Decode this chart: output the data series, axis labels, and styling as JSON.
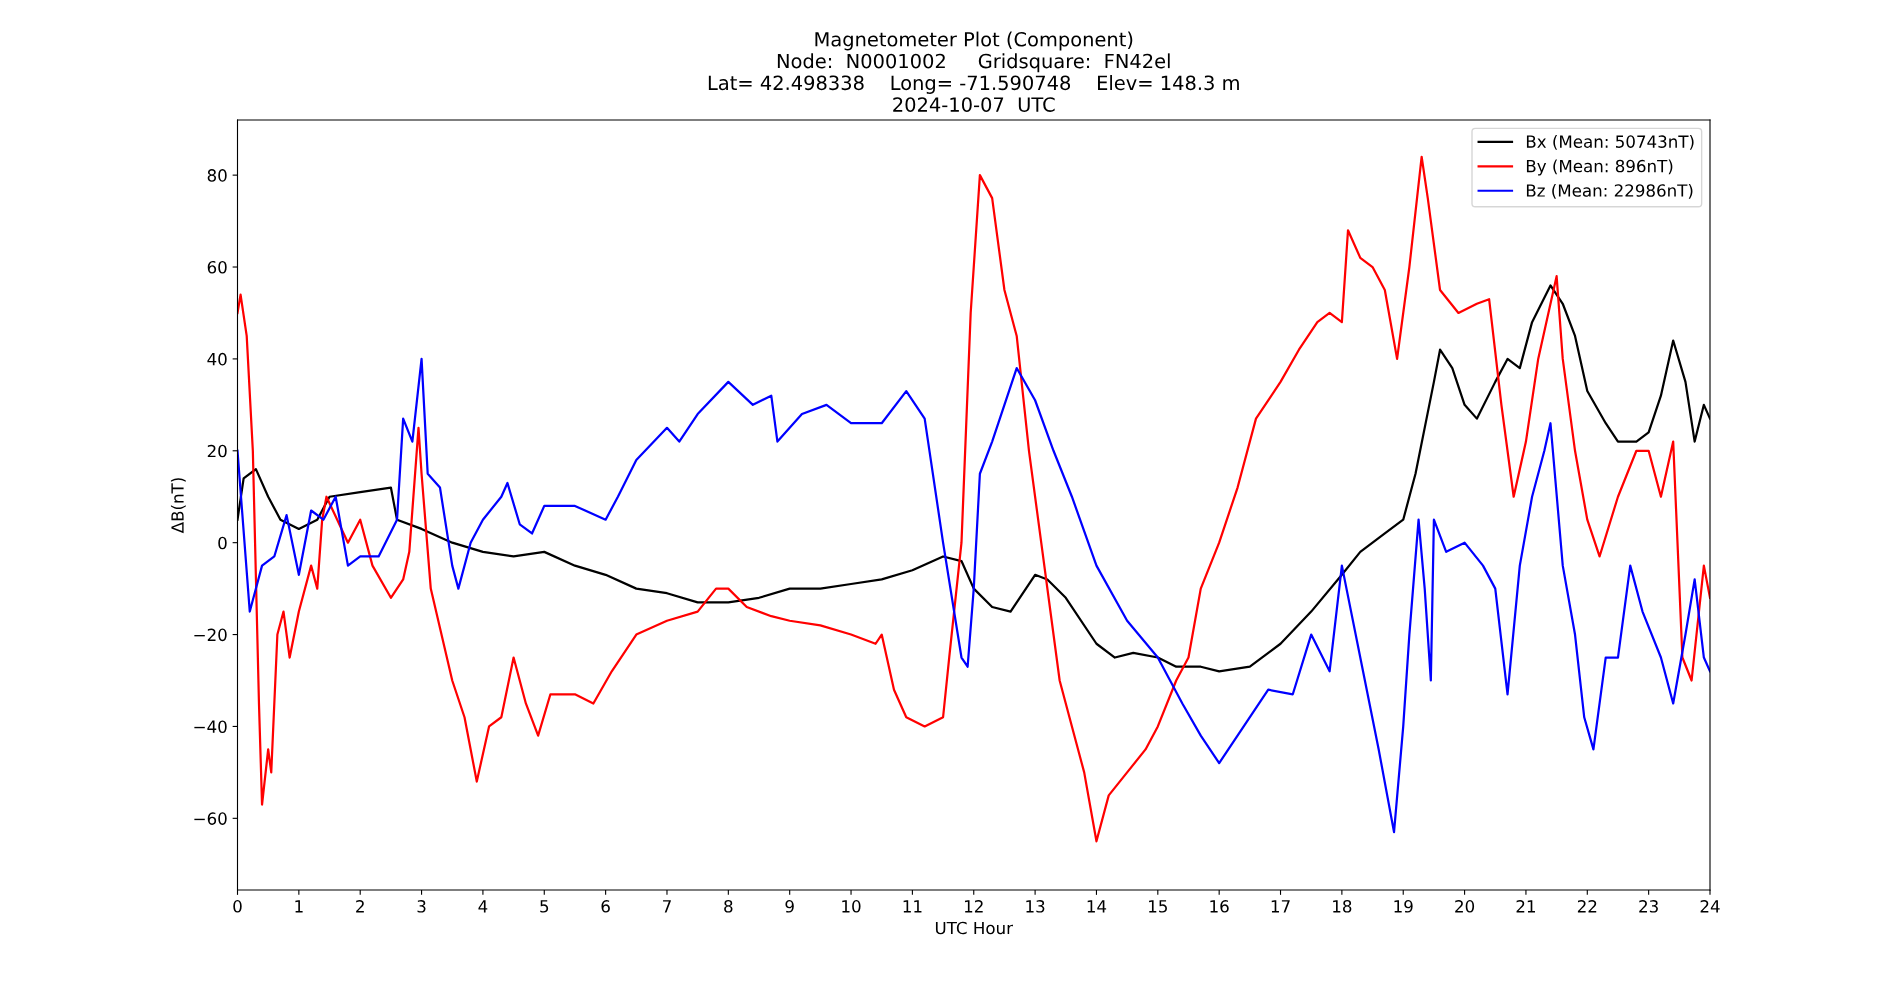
{
  "chart_data": {
    "type": "line",
    "title": "Magnetometer Plot (Component)\nNode:  N0001002     Gridsquare:  FN42el\nLat= 42.498338    Long= -71.590748    Elev= 148.3 m\n2024-10-07  UTC",
    "xlabel": "UTC Hour",
    "ylabel": "ΔB(nT)",
    "xlim": [
      0,
      24
    ],
    "xticks": [
      0,
      1,
      2,
      3,
      4,
      5,
      6,
      7,
      8,
      9,
      10,
      11,
      12,
      13,
      14,
      15,
      16,
      17,
      18,
      19,
      20,
      21,
      22,
      23,
      24
    ],
    "ylim": [
      -75.6,
      92
    ],
    "yticks": [
      {
        "value": -60,
        "label": "−60"
      },
      {
        "value": -40,
        "label": "−40"
      },
      {
        "value": -20,
        "label": "−20"
      },
      0,
      20,
      40,
      60,
      80
    ],
    "grid": false,
    "legend": "top right",
    "line_style": "solid",
    "marker": "none",
    "series": [
      {
        "name": "Bx (Mean: 50743nT)",
        "color": "#000000",
        "x": [
          0,
          0.1,
          0.3,
          0.5,
          0.7,
          1.0,
          1.3,
          1.5,
          2.0,
          2.5,
          2.6,
          3.0,
          3.5,
          4,
          4.5,
          5,
          5.5,
          6,
          6.5,
          7,
          7.5,
          8,
          8.5,
          9,
          9.5,
          10,
          10.5,
          11,
          11.5,
          11.8,
          12,
          12.3,
          12.6,
          13,
          13.2,
          13.5,
          14,
          14.3,
          14.6,
          15,
          15.3,
          15.7,
          16,
          16.5,
          17,
          17.5,
          18,
          18.3,
          18.7,
          19,
          19.2,
          19.5,
          19.6,
          19.8,
          20,
          20.2,
          20.5,
          20.7,
          20.9,
          21.1,
          21.4,
          21.6,
          21.8,
          22,
          22.3,
          22.5,
          22.8,
          23,
          23.2,
          23.4,
          23.6,
          23.75,
          23.9,
          24
        ],
        "values": [
          5,
          14,
          16,
          10,
          5,
          3,
          5,
          10,
          11,
          12,
          5,
          3,
          0,
          -2,
          -3,
          -2,
          -5,
          -7,
          -10,
          -11,
          -13,
          -13,
          -12,
          -10,
          -10,
          -9,
          -8,
          -6,
          -3,
          -4,
          -10,
          -14,
          -15,
          -7,
          -8,
          -12,
          -22,
          -25,
          -24,
          -25,
          -27,
          -27,
          -28,
          -27,
          -22,
          -15,
          -7,
          -2,
          2,
          5,
          15,
          35,
          42,
          38,
          30,
          27,
          35,
          40,
          38,
          48,
          56,
          52,
          45,
          33,
          26,
          22,
          22,
          24,
          32,
          44,
          35,
          22,
          30,
          27
        ]
      },
      {
        "name": "By (Mean: 896nT)",
        "color": "#ff0000",
        "x": [
          0,
          0.05,
          0.15,
          0.25,
          0.35,
          0.4,
          0.5,
          0.55,
          0.65,
          0.75,
          0.85,
          1.0,
          1.2,
          1.3,
          1.38,
          1.45,
          1.8,
          2.0,
          2.2,
          2.5,
          2.7,
          2.8,
          2.95,
          3.0,
          3.15,
          3.5,
          3.7,
          3.9,
          4.1,
          4.3,
          4.5,
          4.7,
          4.9,
          5.1,
          5.5,
          5.8,
          6.1,
          6.5,
          7,
          7.5,
          7.8,
          8,
          8.3,
          8.7,
          9,
          9.5,
          10,
          10.4,
          10.5,
          10.7,
          10.9,
          11.2,
          11.5,
          11.6,
          11.8,
          11.95,
          12.1,
          12.3,
          12.5,
          12.7,
          12.9,
          13.1,
          13.4,
          13.6,
          13.8,
          14.0,
          14.2,
          14.5,
          14.8,
          15,
          15.3,
          15.5,
          15.7,
          16,
          16.3,
          16.6,
          17,
          17.3,
          17.6,
          17.8,
          18,
          18.1,
          18.3,
          18.5,
          18.7,
          18.9,
          19.1,
          19.3,
          19.4,
          19.6,
          19.9,
          20.2,
          20.4,
          20.6,
          20.8,
          21.0,
          21.2,
          21.4,
          21.5,
          21.6,
          21.8,
          22.0,
          22.2,
          22.5,
          22.8,
          23.0,
          23.2,
          23.4,
          23.55,
          23.7,
          23.9,
          24
        ],
        "values": [
          50,
          54,
          45,
          20,
          -35,
          -57,
          -45,
          -50,
          -20,
          -15,
          -25,
          -15,
          -5,
          -10,
          5,
          10,
          0,
          5,
          -5,
          -12,
          -8,
          -2,
          25,
          15,
          -10,
          -30,
          -38,
          -52,
          -40,
          -38,
          -25,
          -35,
          -42,
          -33,
          -33,
          -35,
          -28,
          -20,
          -17,
          -15,
          -10,
          -10,
          -14,
          -16,
          -17,
          -18,
          -20,
          -22,
          -20,
          -32,
          -38,
          -40,
          -38,
          -25,
          0,
          50,
          80,
          75,
          55,
          45,
          20,
          0,
          -30,
          -40,
          -50,
          -65,
          -55,
          -50,
          -45,
          -40,
          -30,
          -25,
          -10,
          0,
          12,
          27,
          35,
          42,
          48,
          50,
          48,
          68,
          62,
          60,
          55,
          40,
          60,
          84,
          75,
          55,
          50,
          52,
          53,
          30,
          10,
          22,
          40,
          52,
          58,
          40,
          20,
          5,
          -3,
          10,
          20,
          20,
          10,
          22,
          -25,
          -30,
          -5,
          -12
        ]
      },
      {
        "name": "Bz (Mean: 22986nT)",
        "color": "#0000ff",
        "x": [
          0,
          0.2,
          0.4,
          0.6,
          0.8,
          1.0,
          1.2,
          1.4,
          1.6,
          1.8,
          2.0,
          2.3,
          2.6,
          2.7,
          2.85,
          3.0,
          3.1,
          3.3,
          3.5,
          3.6,
          3.8,
          4.0,
          4.3,
          4.4,
          4.6,
          4.8,
          5.0,
          5.5,
          6.0,
          6.2,
          6.5,
          7.0,
          7.2,
          7.5,
          8.0,
          8.4,
          8.7,
          8.8,
          9.2,
          9.6,
          10,
          10.5,
          10.9,
          11.2,
          11.5,
          11.8,
          11.9,
          12.0,
          12.1,
          12.3,
          12.7,
          13,
          13.3,
          13.6,
          14,
          14.5,
          15.0,
          15.4,
          15.7,
          16,
          16.4,
          16.8,
          17.2,
          17.5,
          17.8,
          18,
          18.3,
          18.6,
          18.85,
          19.0,
          19.1,
          19.25,
          19.35,
          19.45,
          19.5,
          19.7,
          20,
          20.3,
          20.5,
          20.7,
          20.9,
          21.1,
          21.3,
          21.4,
          21.6,
          21.8,
          21.95,
          22.1,
          22.3,
          22.5,
          22.7,
          22.9,
          23.2,
          23.4,
          23.6,
          23.75,
          23.9,
          24
        ],
        "values": [
          20,
          -15,
          -5,
          -3,
          6,
          -7,
          7,
          5,
          10,
          -5,
          -3,
          -3,
          5,
          27,
          22,
          40,
          15,
          12,
          -5,
          -10,
          0,
          5,
          10,
          13,
          4,
          2,
          8,
          8,
          5,
          10,
          18,
          25,
          22,
          28,
          35,
          30,
          32,
          22,
          28,
          30,
          26,
          26,
          33,
          27,
          0,
          -25,
          -27,
          -10,
          15,
          22,
          38,
          31,
          20,
          10,
          -5,
          -17,
          -25,
          -35,
          -42,
          -48,
          -40,
          -32,
          -33,
          -20,
          -28,
          -5,
          -25,
          -45,
          -63,
          -40,
          -20,
          5,
          -10,
          -30,
          5,
          -2,
          0,
          -5,
          -10,
          -33,
          -5,
          10,
          20,
          26,
          -5,
          -20,
          -38,
          -45,
          -25,
          -25,
          -5,
          -15,
          -25,
          -35,
          -20,
          -8,
          -25,
          -28
        ]
      }
    ]
  }
}
